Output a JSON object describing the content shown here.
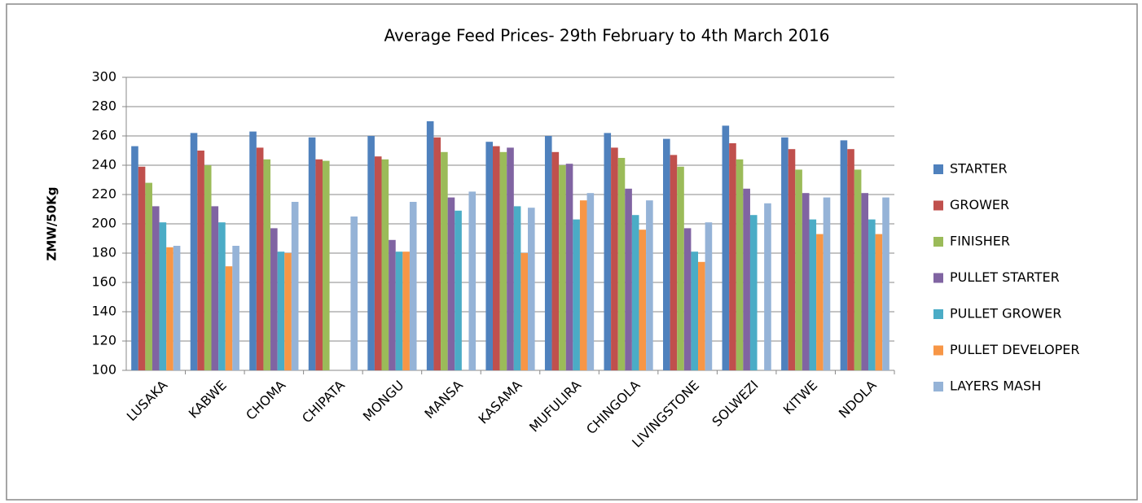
{
  "chart_data": {
    "type": "bar",
    "title": "Average Feed Prices- 29th February  to 4th March 2016",
    "y_label": "ZMW/50Kg",
    "categories": [
      "LUSAKA",
      "KABWE",
      "CHOMA",
      "CHIPATA",
      "MONGU",
      "MANSA",
      "KASAMA",
      "MUFULIRA",
      "CHINGOLA",
      "LIVINGSTONE",
      "SOLWEZI",
      "KITWE",
      "NDOLA"
    ],
    "series": [
      {
        "name": "STARTER",
        "color": "#4f81bd",
        "values": [
          253,
          262,
          263,
          259,
          260,
          270,
          256,
          260,
          262,
          258,
          267,
          259,
          257
        ]
      },
      {
        "name": "GROWER",
        "color": "#c0504d",
        "values": [
          239,
          250,
          252,
          244,
          246,
          259,
          253,
          249,
          252,
          247,
          255,
          251,
          251
        ]
      },
      {
        "name": "FINISHER",
        "color": "#9bbb59",
        "values": [
          228,
          240,
          244,
          243,
          244,
          249,
          249,
          240,
          245,
          239,
          244,
          237,
          237
        ]
      },
      {
        "name": "PULLET STARTER",
        "color": "#8064a2",
        "values": [
          212,
          212,
          197,
          null,
          189,
          218,
          252,
          241,
          224,
          197,
          224,
          221,
          221
        ]
      },
      {
        "name": "PULLET GROWER",
        "color": "#4bacc6",
        "values": [
          201,
          201,
          181,
          null,
          181,
          209,
          212,
          203,
          206,
          181,
          206,
          203,
          203
        ]
      },
      {
        "name": "PULLET DEVELOPER",
        "color": "#f79646",
        "values": [
          184,
          171,
          180,
          null,
          181,
          null,
          180,
          216,
          196,
          174,
          null,
          193,
          193
        ]
      },
      {
        "name": "LAYERS MASH",
        "color": "#95b3d7",
        "values": [
          185,
          185,
          215,
          205,
          215,
          222,
          211,
          221,
          216,
          201,
          214,
          218,
          218
        ]
      }
    ],
    "ylim": [
      100,
      300
    ],
    "yticks": [
      100,
      120,
      140,
      160,
      180,
      200,
      220,
      240,
      260,
      280,
      300
    ],
    "grid": true,
    "legend": "right"
  }
}
